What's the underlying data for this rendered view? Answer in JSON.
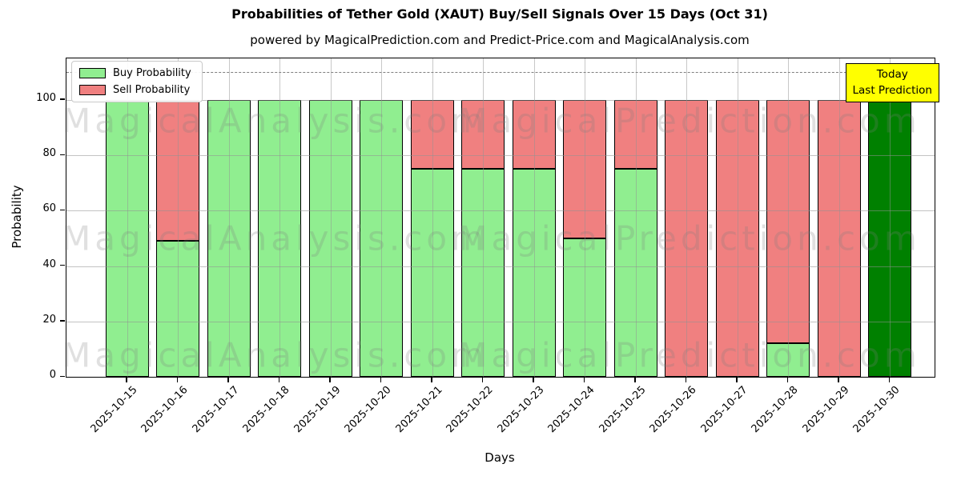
{
  "chart_data": {
    "type": "bar",
    "stacked": true,
    "title": "Probabilities of Tether Gold (XAUT) Buy/Sell Signals Over 15 Days (Oct 31)",
    "subtitle": "powered by MagicalPrediction.com and Predict-Price.com and MagicalAnalysis.com",
    "xlabel": "Days",
    "ylabel": "Probability",
    "ylim": [
      0,
      115
    ],
    "yticks": [
      0,
      20,
      40,
      60,
      80,
      100
    ],
    "grid": true,
    "legend_position": "upper-left",
    "dashed_hline_y": 110,
    "categories": [
      "2025-10-15",
      "2025-10-16",
      "2025-10-17",
      "2025-10-18",
      "2025-10-19",
      "2025-10-20",
      "2025-10-21",
      "2025-10-22",
      "2025-10-23",
      "2025-10-24",
      "2025-10-25",
      "2025-10-26",
      "2025-10-27",
      "2025-10-28",
      "2025-10-29",
      "2025-10-30"
    ],
    "series": [
      {
        "name": "Buy Probability",
        "color": "#90ee90",
        "values": [
          100,
          49,
          100,
          100,
          100,
          100,
          75,
          75,
          75,
          50,
          75,
          0,
          0,
          12,
          0,
          100
        ]
      },
      {
        "name": "Sell Probability",
        "color": "#f08080",
        "values": [
          0,
          51,
          0,
          0,
          0,
          0,
          25,
          25,
          25,
          50,
          25,
          100,
          100,
          88,
          100,
          0
        ]
      }
    ],
    "today_bar": {
      "index": 15,
      "color": "#008000",
      "annotation": {
        "line1": "Today",
        "line2": "Last Prediction",
        "bg_color": "#ffff00"
      }
    },
    "watermarks": [
      "MagicalAnalysis.com",
      "MagicalPrediction.com"
    ],
    "colors": {
      "bar_edge": "#000000",
      "grid": "#919191",
      "dashed_line": "#7f7f7f",
      "annotation_border": "#000000"
    }
  }
}
